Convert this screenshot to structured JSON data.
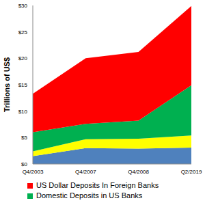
{
  "chart_data": {
    "type": "area",
    "stacked": true,
    "legend": "bottom",
    "grid": false,
    "y_label": "Trillions of US$",
    "categories": [
      "Q4/2003",
      "Q4/2007",
      "Q4/2008",
      "Q2/2019"
    ],
    "ylim": [
      0,
      30
    ],
    "yticks": [
      {
        "value": 0,
        "label": "$0"
      },
      {
        "value": 5,
        "label": "$5"
      },
      {
        "value": 10,
        "label": "$10"
      },
      {
        "value": 15,
        "label": "$15"
      },
      {
        "value": 20,
        "label": "$20"
      },
      {
        "value": 25,
        "label": "$25"
      },
      {
        "value": 30,
        "label": "$30"
      }
    ],
    "series": [
      {
        "color": "#4f81bd",
        "values": [
          1.5,
          3.0,
          2.9,
          3.1
        ]
      },
      {
        "color": "#ffff00",
        "values": [
          0.9,
          1.7,
          1.9,
          2.3
        ]
      },
      {
        "name": "Domestic Deposits in US Banks",
        "color": "#00b050",
        "values": [
          3.6,
          2.9,
          3.4,
          9.5
        ]
      },
      {
        "name": "US Dollar Deposits In Foreign Banks",
        "color": "#ff0000",
        "values": [
          7.3,
          12.4,
          13.0,
          15.0
        ]
      }
    ]
  }
}
